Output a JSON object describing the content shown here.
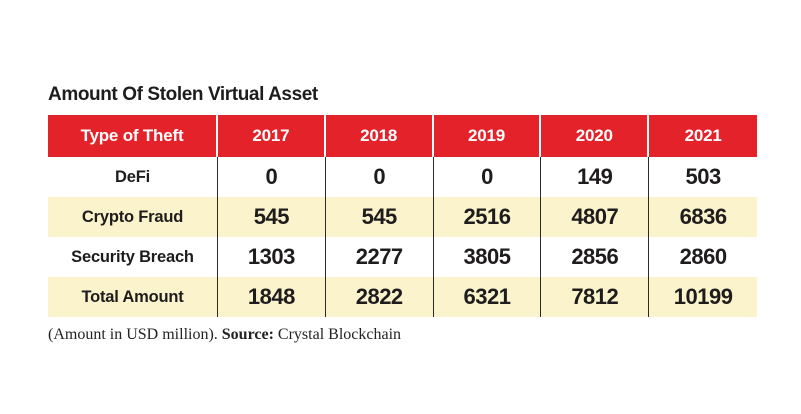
{
  "colors": {
    "header_bg": "#e4222a",
    "header_text": "#ffffff",
    "alt_row_bg": "#faf3cb",
    "body_text": "#1f1c1d",
    "column_divider": "#2b2a2a"
  },
  "chart_data": {
    "type": "table",
    "title": "Amount Of Stolen Virtual Asset",
    "columns": [
      "Type of Theft",
      "2017",
      "2018",
      "2019",
      "2020",
      "2021"
    ],
    "rows": [
      {
        "label": "DeFi",
        "values": [
          "0",
          "0",
          "0",
          "149",
          "503"
        ]
      },
      {
        "label": "Crypto Fraud",
        "values": [
          "545",
          "545",
          "2516",
          "4807",
          "6836"
        ]
      },
      {
        "label": "Security Breach",
        "values": [
          "1303",
          "2277",
          "3805",
          "2856",
          "2860"
        ]
      },
      {
        "label": "Total Amount",
        "values": [
          "1848",
          "2822",
          "6321",
          "7812",
          "10199"
        ]
      }
    ],
    "footnote": {
      "unit_note": "(Amount in USD million).",
      "source_label": "Source:",
      "source": "Crystal Blockchain"
    },
    "layout_hints": {
      "legend": "none",
      "grid": "column dividers only",
      "row_striping": "white / pale-yellow alternating"
    }
  }
}
